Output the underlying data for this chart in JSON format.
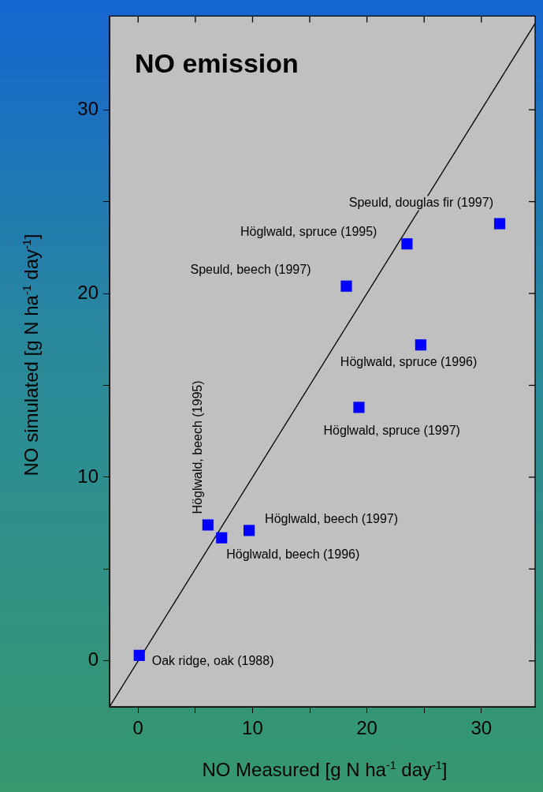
{
  "chart_data": {
    "type": "scatter",
    "title": "NO emission",
    "xlabel": "NO Measured [g N ha$^{-1}$ day$^{-1}$]",
    "ylabel": "NO simulated [g N ha$^{-1}$ day$^{-1}$]",
    "series": [
      {
        "color": "#0000ff",
        "marker": "square",
        "x": [
          0.1,
          6.1,
          7.3,
          9.7,
          18.2,
          19.3,
          23.5,
          24.7,
          31.6
        ],
        "values": [
          0.3,
          7.4,
          6.7,
          7.1,
          20.4,
          13.8,
          22.7,
          17.2,
          23.8
        ]
      },
      {
        "type": "line",
        "color": "#000000",
        "marker": "none",
        "line_style": "solid",
        "x": [
          -2.5,
          34.7
        ],
        "values": [
          -2.5,
          34.7
        ]
      }
    ],
    "xlim": [
      -2.5,
      34.7
    ],
    "ylim": [
      -2.5,
      35.1
    ],
    "xticks": [
      0,
      {
        "value": 5,
        "label": null
      },
      10,
      {
        "value": 15,
        "label": null
      },
      20,
      {
        "value": 25,
        "label": null
      },
      30
    ],
    "yticks": [
      0,
      {
        "value": 5,
        "label": null
      },
      10,
      {
        "value": 15,
        "label": null
      },
      20,
      {
        "value": 25,
        "label": null
      },
      30
    ],
    "grid": false,
    "legend": false,
    "annotations": [
      {
        "text": "Oak ridge, oak (1988)",
        "x": 0.1,
        "y": 0.3
      },
      {
        "text": "Höglwald, beech (1995)",
        "x": 6.1,
        "y": 7.4
      },
      {
        "text": "Höglwald, beech (1996)",
        "x": 7.3,
        "y": 6.7
      },
      {
        "text": "Höglwald, beech (1997)",
        "x": 9.7,
        "y": 7.1
      },
      {
        "text": "Speuld, beech (1997)",
        "x": 18.2,
        "y": 20.4
      },
      {
        "text": "Höglwald, spruce (1997)",
        "x": 19.3,
        "y": 13.8
      },
      {
        "text": "Höglwald, spruce (1995)",
        "x": 23.5,
        "y": 22.7
      },
      {
        "text": "Höglwald, spruce (1996)",
        "x": 24.7,
        "y": 17.2
      },
      {
        "text": "Speuld, douglas fir (1997)",
        "x": 31.6,
        "y": 23.8
      }
    ]
  }
}
